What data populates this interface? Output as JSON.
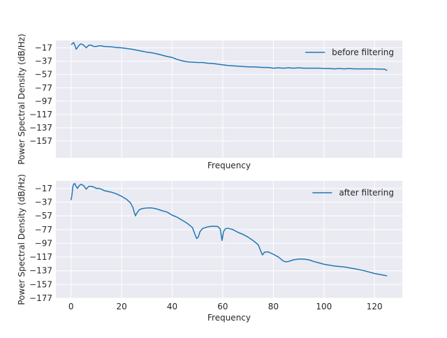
{
  "chart_data": [
    {
      "type": "line",
      "title": "",
      "xlabel": "Frequency",
      "ylabel": "Power Spectral Density (dB/Hz)",
      "xlim": [
        -6,
        131
      ],
      "ylim": [
        -182,
        -6
      ],
      "yticks": [
        -17,
        -37,
        -57,
        -77,
        -97,
        -117,
        -137,
        -157
      ],
      "xticks": [
        0,
        20,
        40,
        60,
        80,
        100,
        120
      ],
      "show_xticklabels": false,
      "grid": true,
      "legend_position": "upper right",
      "series": [
        {
          "name": "before filtering",
          "color": "#1f77b4",
          "x": [
            0,
            0.5,
            1,
            1.5,
            2,
            2.5,
            3,
            3.5,
            4,
            4.5,
            5,
            6,
            7,
            8,
            9,
            10,
            11,
            12,
            13,
            14,
            16,
            18,
            20,
            22,
            24,
            26,
            28,
            30,
            32,
            34,
            36,
            38,
            40,
            42,
            44,
            46,
            48,
            50,
            52,
            54,
            56,
            58,
            60,
            62,
            64,
            66,
            68,
            70,
            72,
            74,
            76,
            78,
            80,
            82,
            84,
            86,
            88,
            90,
            92,
            94,
            96,
            98,
            100,
            102,
            104,
            106,
            108,
            110,
            112,
            114,
            116,
            118,
            120,
            122,
            124,
            125
          ],
          "values": [
            -12,
            -11,
            -9,
            -13,
            -19,
            -17,
            -14,
            -12,
            -11,
            -12,
            -13,
            -17,
            -13,
            -13,
            -15,
            -15,
            -14,
            -14,
            -15,
            -15,
            -15.5,
            -16.5,
            -17,
            -18,
            -19,
            -20.5,
            -22,
            -23.5,
            -24.5,
            -26,
            -28,
            -30,
            -31.5,
            -34.5,
            -36.5,
            -38,
            -38.5,
            -39,
            -39,
            -40,
            -40.5,
            -41.5,
            -42.5,
            -43.5,
            -44,
            -44.5,
            -45,
            -45.5,
            -45.5,
            -46,
            -46.5,
            -46.5,
            -47.5,
            -47,
            -47.5,
            -47,
            -47.5,
            -47,
            -47.5,
            -47.5,
            -47.5,
            -47.5,
            -48,
            -48,
            -48.5,
            -48,
            -48.5,
            -48,
            -48.5,
            -48.5,
            -48.5,
            -48.5,
            -48.5,
            -49,
            -49,
            -51
          ]
        }
      ]
    },
    {
      "type": "line",
      "title": "",
      "xlabel": "Frequency",
      "ylabel": "Power Spectral Density (dB/Hz)",
      "xlim": [
        -6,
        131
      ],
      "ylim": [
        -177,
        -6
      ],
      "yticks": [
        -17,
        -37,
        -57,
        -77,
        -97,
        -117,
        -137,
        -157,
        -177
      ],
      "xticks": [
        0,
        20,
        40,
        60,
        80,
        100,
        120
      ],
      "show_xticklabels": true,
      "grid": true,
      "legend_position": "upper right",
      "series": [
        {
          "name": "after filtering",
          "color": "#1f77b4",
          "x": [
            0,
            0.3,
            0.7,
            1,
            1.5,
            2,
            2.5,
            3,
            3.5,
            4,
            4.5,
            5,
            6,
            7,
            8,
            9,
            10,
            11,
            12,
            13,
            14,
            16,
            18,
            20,
            22,
            23.5,
            24.5,
            25,
            25.5,
            26,
            27,
            28,
            30,
            32,
            34,
            36,
            38,
            40,
            42,
            44,
            46,
            48,
            49,
            49.7,
            50.3,
            51,
            52,
            54,
            56,
            58,
            59,
            59.7,
            60.3,
            61,
            62,
            64,
            66,
            68,
            70,
            72,
            74,
            75,
            75.7,
            76.5,
            78,
            80,
            82,
            84,
            85,
            86,
            88,
            90,
            92,
            94,
            96,
            98,
            100,
            104,
            108,
            112,
            116,
            120,
            123,
            125
          ],
          "values": [
            -34,
            -28,
            -15,
            -11,
            -10,
            -14,
            -17,
            -14,
            -12,
            -11,
            -12,
            -13,
            -18,
            -14,
            -14,
            -15,
            -17,
            -17,
            -18,
            -20,
            -21,
            -22.5,
            -25,
            -28.5,
            -33,
            -38,
            -45,
            -52,
            -57,
            -53,
            -48,
            -46.5,
            -45.5,
            -45.5,
            -47,
            -49.5,
            -51.5,
            -56,
            -59,
            -63.5,
            -68,
            -74,
            -84,
            -90,
            -88,
            -80,
            -75.5,
            -73,
            -72,
            -72.5,
            -76,
            -93,
            -80,
            -76,
            -75,
            -77,
            -81,
            -84,
            -88,
            -93,
            -99,
            -108,
            -114,
            -110,
            -109.5,
            -113,
            -117,
            -123,
            -124,
            -123.5,
            -121,
            -120,
            -120,
            -121,
            -123.5,
            -125.5,
            -127.5,
            -130,
            -131.5,
            -134,
            -137,
            -141,
            -143,
            -144.5
          ]
        }
      ]
    }
  ]
}
